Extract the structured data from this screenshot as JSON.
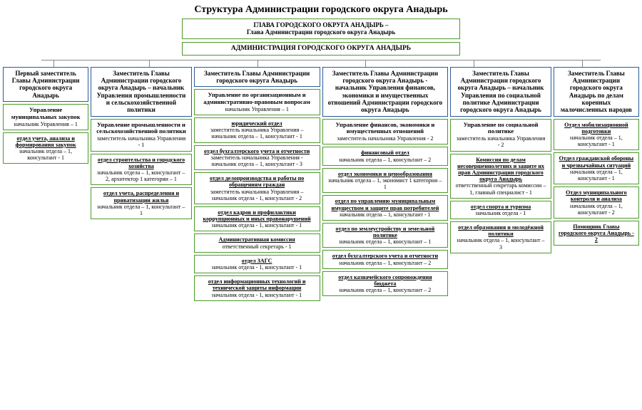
{
  "title": "Структура Администрации городского округа Анадырь",
  "colors": {
    "green": "#4c9a2a",
    "blue": "#2a5a9a",
    "bg": "#ffffff"
  },
  "top": {
    "head1": "ГЛАВА ГОРОДСКОГО ОКРУГА АНАДЫРЬ –",
    "head2": "Глава Администрации городского округа Анадырь",
    "admin": "АДМИНИСТРАЦИЯ ГОРОДСКОГО ОКРУГА АНАДЫРЬ"
  },
  "cols": [
    {
      "head": "Первый заместитель Главы Администрации городского округа Анадырь",
      "mgmt": {
        "t": "Управление муниципальных закупок",
        "s": "начальник Управления – 1"
      },
      "units": [
        {
          "t": "отдел учета, анализа и формирования закупок",
          "s": "начальник отдела – 1, консультант - 1"
        }
      ]
    },
    {
      "head": "Заместитель Главы Администрации городского округа Анадырь – начальник Управления промышленности и сельскохозяйственной политики",
      "mgmt": {
        "t": "Управление промышленности и сельскохозяйственной политики",
        "s": "заместитель начальника Управления - 1"
      },
      "units": [
        {
          "t": "отдел строительства и городского хозяйства",
          "s": "начальник отдела – 1, консультант – 2, архитектор 1 категории – 1"
        },
        {
          "t": "отдел учета, распределения и приватизации жилья",
          "s": "начальник отдела – 1, консультант – 1"
        }
      ]
    },
    {
      "head": "Заместитель Главы Администрации городского округа Анадырь",
      "mgmt": {
        "t": "Управление по организационным и административно-правовым вопросам",
        "s": "начальник Управления – 1"
      },
      "units": [
        {
          "t": "юридический отдел",
          "s": "заместитель начальника Управления – начальник отдела – 1, консультант - 1"
        },
        {
          "t": "отдел бухгалтерского учета и отчетности",
          "s": "заместитель начальника Управления - начальник отдела – 1, консультант - 3"
        },
        {
          "t": "отдел делопроизводства и работы по обращениям граждан",
          "s": "заместитель начальника Управления – начальник отдела - 1, консультант - 2"
        },
        {
          "t": "отдел кадров и профилактики коррупционных и иных правонарушений",
          "s": "начальник отдела - 1, консультант - 1"
        },
        {
          "t": "Административная комиссия",
          "s": "ответственный секретарь - 1"
        },
        {
          "t": "отдел ЗАГС",
          "s": "начальник отдела - 1, консультант - 1"
        },
        {
          "t": "отдел информационных технологий и технической защиты информации",
          "s": "начальник отдела - 1, консультант - 1"
        }
      ]
    },
    {
      "head": "Заместитель Главы Администрации городского округа Анадырь - начальник Управления финансов, экономики и имущественных отношений Администрации городского округа Анадырь",
      "mgmt": {
        "t": "Управление финансов, экономики и имущественных отношений",
        "s": "заместитель начальника Управления - 2"
      },
      "units": [
        {
          "t": "финансовый отдел",
          "s": "начальник отдела – 1, консультант – 2"
        },
        {
          "t": "отдел экономики и ценообразования",
          "s": "начальник отдела – 1, экономист 1 категории – 1"
        },
        {
          "t": "отдел по управлению муниципальным имуществом и защите прав потребителей",
          "s": "начальник отдела – 1, консультант - 1"
        },
        {
          "t": "отдел по землеустройству и земельной политике",
          "s": "начальник отдела – 1, консультант – 1"
        },
        {
          "t": "отдел бухгалтерского учета и отчетности",
          "s": "начальник отдела – 1, консультант – 2"
        },
        {
          "t": "отдел казначейского сопровождения бюджета",
          "s": "начальник отдела – 1, консультант – 2"
        }
      ]
    },
    {
      "head": "Заместитель Главы Администрации городского округа Анадырь – начальник Управления по социальной политике Администрации городского округа Анадырь",
      "mgmt": {
        "t": "Управление по социальной политике",
        "s": "заместитель начальника Управления - 2"
      },
      "units": [
        {
          "t": "Комиссия по делам несовершеннолетних и защите их прав Администрации городского округа Анадырь",
          "s": "ответственный секретарь комиссии – 1, главный специалист - 1"
        },
        {
          "t": "отдел спорта и туризма",
          "s": "начальник отдела - 1"
        },
        {
          "t": "отдел образования и молодёжной политики",
          "s": "начальник отдела – 1, консультант – 3"
        }
      ]
    },
    {
      "head": "Заместитель Главы Администрации городского округа Анадырь по делам коренных малочисленных народов",
      "extras": [
        {
          "t": "Отдел мобилизационной подготовки",
          "s": "начальник отдела – 1, консультант - 1"
        },
        {
          "t": "Отдел гражданской обороны и чрезвычайных ситуаций",
          "s": "начальник отдела – 1, консультант - 1"
        },
        {
          "t": "Отдел муниципального контроля и анализа",
          "s": "начальник отдела – 1, консультант - 2"
        },
        {
          "t": "Помощник Главы городского округа Анадырь - 2",
          "s": ""
        }
      ]
    }
  ]
}
